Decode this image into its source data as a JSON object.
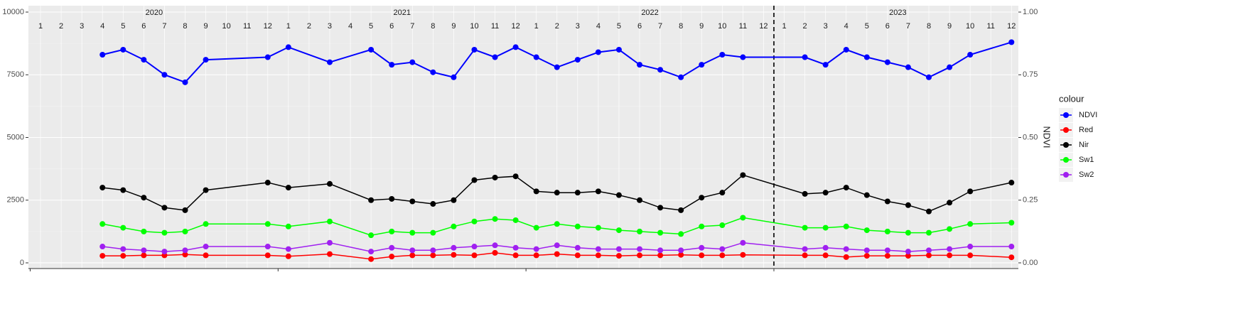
{
  "chart_data": {
    "type": "line",
    "y2_label": "NDVI",
    "legend_title": "colour",
    "legend": "right",
    "grid": true,
    "vline": "2023-01",
    "years": [
      2020,
      2021,
      2022,
      2023
    ],
    "month_labels": [
      1,
      2,
      3,
      4,
      5,
      6,
      7,
      8,
      9,
      10,
      11,
      12,
      1,
      2,
      3,
      4,
      5,
      6,
      7,
      8,
      9,
      10,
      11,
      12,
      1,
      2,
      3,
      4,
      5,
      6,
      7,
      8,
      9,
      10,
      11,
      12,
      1,
      2,
      3,
      4,
      5,
      6,
      7,
      8,
      9,
      10,
      11,
      12
    ],
    "x": [
      "2020-04",
      "2020-05",
      "2020-06",
      "2020-07",
      "2020-08",
      "2020-09",
      "2020-12",
      "2021-01",
      "2021-03",
      "2021-05",
      "2021-06",
      "2021-07",
      "2021-08",
      "2021-09",
      "2021-10",
      "2021-11",
      "2021-12",
      "2022-01",
      "2022-02",
      "2022-03",
      "2022-04",
      "2022-05",
      "2022-06",
      "2022-07",
      "2022-08",
      "2022-09",
      "2022-10",
      "2022-11",
      "2023-02",
      "2023-03",
      "2023-04",
      "2023-05",
      "2023-06",
      "2023-07",
      "2023-08",
      "2023-09",
      "2023-10",
      "2023-12"
    ],
    "ylim": [
      -227,
      10255
    ],
    "yticks": [
      0,
      2500,
      5000,
      7500,
      10000
    ],
    "y2lim": [
      -0.0227,
      1.0255
    ],
    "y2ticks": [
      {
        "value": 0,
        "label": "0.00"
      },
      {
        "value": 0.25,
        "label": "0.25"
      },
      {
        "value": 0.5,
        "label": "0.50"
      },
      {
        "value": 0.75,
        "label": "0.75"
      },
      {
        "value": 1,
        "label": "1.00"
      }
    ],
    "series": [
      {
        "name": "NDVI",
        "color": "#0000ff",
        "axis": "y2",
        "values": [
          0.83,
          0.85,
          0.81,
          0.75,
          0.72,
          0.81,
          0.82,
          0.86,
          0.8,
          0.85,
          0.79,
          0.8,
          0.76,
          0.74,
          0.85,
          0.82,
          0.86,
          0.82,
          0.78,
          0.81,
          0.84,
          0.85,
          0.79,
          0.77,
          0.74,
          0.79,
          0.83,
          0.82,
          0.82,
          0.79,
          0.85,
          0.82,
          0.8,
          0.78,
          0.74,
          0.78,
          0.83,
          0.88
        ]
      },
      {
        "name": "Red",
        "color": "#ff0000",
        "values": [
          280,
          280,
          300,
          300,
          330,
          300,
          300,
          260,
          350,
          150,
          250,
          300,
          300,
          320,
          300,
          400,
          300,
          300,
          350,
          300,
          300,
          280,
          300,
          300,
          320,
          300,
          300,
          320,
          300,
          300,
          230,
          280,
          280,
          280,
          300,
          300,
          300,
          220
        ]
      },
      {
        "name": "Nir",
        "color": "#000000",
        "values": [
          3000,
          2900,
          2600,
          2200,
          2100,
          2900,
          3200,
          3000,
          3150,
          2500,
          2550,
          2450,
          2350,
          2500,
          3300,
          3400,
          3450,
          2850,
          2800,
          2800,
          2850,
          2700,
          2500,
          2200,
          2100,
          2600,
          2800,
          3500,
          2750,
          2800,
          3000,
          2700,
          2450,
          2300,
          2050,
          2400,
          2850,
          3200
        ]
      },
      {
        "name": "Sw1",
        "color": "#00ff00",
        "values": [
          1550,
          1400,
          1250,
          1200,
          1250,
          1550,
          1550,
          1450,
          1650,
          1100,
          1250,
          1200,
          1200,
          1450,
          1650,
          1750,
          1700,
          1400,
          1550,
          1450,
          1400,
          1300,
          1250,
          1200,
          1150,
          1450,
          1500,
          1800,
          1400,
          1400,
          1450,
          1300,
          1250,
          1200,
          1200,
          1350,
          1550,
          1600
        ]
      },
      {
        "name": "Sw2",
        "color": "#a020f0",
        "values": [
          650,
          550,
          500,
          450,
          500,
          650,
          650,
          550,
          800,
          450,
          600,
          500,
          500,
          600,
          650,
          700,
          600,
          550,
          700,
          600,
          550,
          550,
          550,
          500,
          500,
          600,
          550,
          800,
          550,
          600,
          550,
          500,
          500,
          450,
          500,
          550,
          650,
          650
        ]
      }
    ]
  }
}
